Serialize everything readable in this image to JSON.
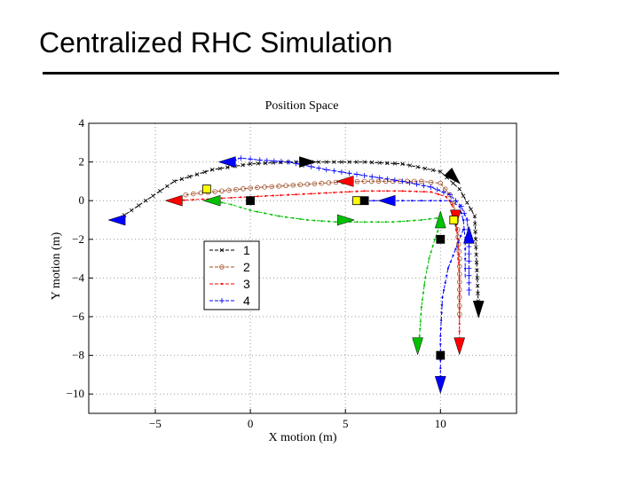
{
  "slide": {
    "title": "Centralized RHC Simulation"
  },
  "chart_data": {
    "type": "line",
    "title": "Position Space",
    "xlabel": "X motion (m)",
    "ylabel": "Y motion (m)",
    "xlim": [
      -8.5,
      14
    ],
    "ylim": [
      -11,
      4
    ],
    "xticks": [
      -5,
      0,
      5,
      10
    ],
    "xtick_labels": [
      "−5",
      "0",
      "5",
      "10"
    ],
    "yticks": [
      4,
      2,
      0,
      -2,
      -4,
      -6,
      -8,
      -10
    ],
    "ytick_labels": [
      "4",
      "2",
      "0",
      "−2",
      "−4",
      "−6",
      "−8",
      "−10"
    ],
    "grid": true,
    "legend_position": "left-middle",
    "series": [
      {
        "name": "1",
        "color": "#000000",
        "marker": "x",
        "x": [
          -7,
          -5.5,
          -4,
          -2,
          0,
          2,
          4,
          6,
          8,
          10,
          11,
          11.8,
          12
        ],
        "y": [
          -1,
          0,
          1,
          1.6,
          1.9,
          2,
          2,
          2,
          1.9,
          1.5,
          0.6,
          -0.8,
          -5.6
        ]
      },
      {
        "name": "2",
        "color": "#a0522d",
        "marker": "o",
        "x": [
          -3.4,
          -2.6,
          -1.5,
          0,
          1.5,
          3,
          4.5,
          6,
          7.5,
          9,
          10,
          10.5,
          10.8,
          10.9,
          11,
          11,
          11
        ],
        "y": [
          0.3,
          0.4,
          0.5,
          0.65,
          0.75,
          0.85,
          0.95,
          1,
          1,
          1,
          0.9,
          0.3,
          -0.6,
          -1.5,
          -3,
          -5,
          -6.3
        ]
      },
      {
        "name": "3",
        "color": "#ff0000",
        "marker": ".",
        "x": [
          -4,
          -3,
          -2,
          -1,
          0,
          2,
          4,
          6,
          8,
          9.5,
          10.3,
          10.6,
          10.8,
          10.9,
          11,
          11,
          11
        ],
        "y": [
          0,
          0.05,
          0.1,
          0.15,
          0.2,
          0.3,
          0.4,
          0.5,
          0.5,
          0.45,
          0.2,
          -0.2,
          -1,
          -2,
          -4,
          -6,
          -7.5
        ]
      },
      {
        "name": "4",
        "color": "#0000ff",
        "marker": "+",
        "x": [
          -1.2,
          -0.5,
          0.5,
          2,
          4,
          6,
          8,
          9.5,
          10.5,
          11.1,
          11.4,
          11.5,
          11.5,
          11.5
        ],
        "y": [
          2,
          2.2,
          2.1,
          2,
          1.6,
          1.3,
          1,
          0.7,
          0.3,
          -0.3,
          -1,
          -2,
          -3.5,
          -5
        ]
      },
      {
        "name": "",
        "color": "#00c000",
        "marker": ".",
        "x": [
          -2,
          -1,
          0,
          1.5,
          3,
          4.5,
          6,
          7.5,
          9,
          9.8,
          10,
          9.7,
          9.4,
          9.2,
          9,
          8.9,
          8.8
        ],
        "y": [
          0,
          -0.2,
          -0.5,
          -0.8,
          -1,
          -1.1,
          -1.1,
          -1.1,
          -1,
          -0.9,
          -1.2,
          -2,
          -3,
          -4,
          -5.5,
          -7,
          -7.5
        ]
      },
      {
        "name": "",
        "color": "#0000ff",
        "marker": ".",
        "x": [
          5.7,
          6.5,
          7.5,
          8.5,
          9.5,
          10.5,
          11,
          11.2,
          11.3,
          11.3,
          11.3
        ],
        "y": [
          0,
          0,
          0,
          0,
          0,
          0,
          -0.3,
          -1,
          -2,
          -3,
          -4
        ]
      },
      {
        "name": "",
        "color": "#0000ff",
        "marker": ".",
        "x": [
          11.2,
          10.8,
          10.4,
          10.1,
          10,
          10
        ],
        "y": [
          -1.5,
          -2.5,
          -3.5,
          -5,
          -7,
          -9.5
        ]
      }
    ],
    "arrowheads": [
      {
        "x": -7,
        "y": -1,
        "color": "#0000ff",
        "dir": "left"
      },
      {
        "x": -1.2,
        "y": 2,
        "color": "#0000ff",
        "dir": "left"
      },
      {
        "x": 3,
        "y": 2,
        "color": "#000000",
        "dir": "right"
      },
      {
        "x": 10.7,
        "y": 1.2,
        "color": "#000000",
        "dir": "down-right"
      },
      {
        "x": 12,
        "y": -5.6,
        "color": "#000000",
        "dir": "down"
      },
      {
        "x": -4,
        "y": 0,
        "color": "#ff0000",
        "dir": "left"
      },
      {
        "x": 5,
        "y": 1,
        "color": "#ff0000",
        "dir": "left"
      },
      {
        "x": 11,
        "y": -7.5,
        "color": "#ff0000",
        "dir": "down"
      },
      {
        "x": -2,
        "y": 0,
        "color": "#00c000",
        "dir": "left"
      },
      {
        "x": 5,
        "y": -1,
        "color": "#00c000",
        "dir": "right"
      },
      {
        "x": 8.8,
        "y": -7.5,
        "color": "#00c000",
        "dir": "down"
      },
      {
        "x": 10,
        "y": -1,
        "color": "#00c000",
        "dir": "up"
      },
      {
        "x": 7.2,
        "y": 0,
        "color": "#0000ff",
        "dir": "left"
      },
      {
        "x": 11.5,
        "y": -1.8,
        "color": "#0000ff",
        "dir": "up"
      },
      {
        "x": 10,
        "y": -9.5,
        "color": "#0000ff",
        "dir": "down"
      },
      {
        "x": 10.8,
        "y": -0.9,
        "color": "#ff0000",
        "dir": "down"
      }
    ],
    "square_markers": [
      {
        "x": -2.3,
        "y": 0.6,
        "color": "#ffff00"
      },
      {
        "x": 0,
        "y": 0,
        "color": "#000000"
      },
      {
        "x": 5.6,
        "y": 0,
        "color": "#ffff00"
      },
      {
        "x": 6,
        "y": 0,
        "color": "#000000"
      },
      {
        "x": 10.7,
        "y": -1,
        "color": "#ffff00"
      },
      {
        "x": 10,
        "y": -2,
        "color": "#000000"
      },
      {
        "x": 10,
        "y": -8,
        "color": "#000000"
      }
    ]
  }
}
